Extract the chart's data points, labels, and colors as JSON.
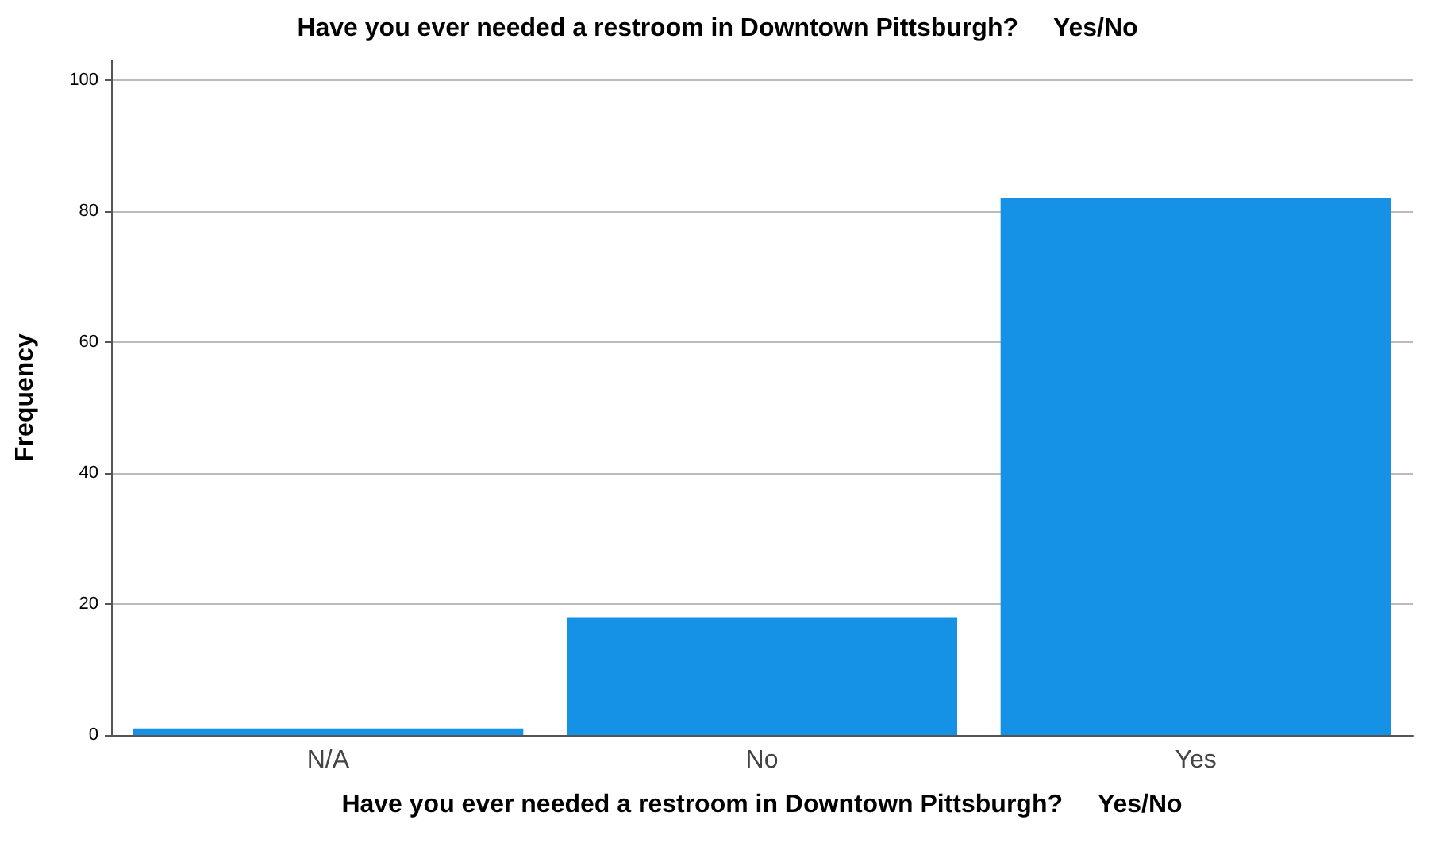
{
  "chart_data": {
    "type": "bar",
    "title": "Have you ever needed a restroom in Downtown Pittsburgh?     Yes/No",
    "xlabel": "Have you ever needed a restroom in Downtown Pittsburgh?     Yes/No",
    "ylabel": "Frequency",
    "categories": [
      "N/A",
      "No",
      "Yes"
    ],
    "values": [
      1,
      18,
      82
    ],
    "color": "#1591e6",
    "ylim": [
      0,
      103
    ],
    "yticks": [
      0,
      20,
      40,
      60,
      80,
      100
    ],
    "grid": "y"
  }
}
